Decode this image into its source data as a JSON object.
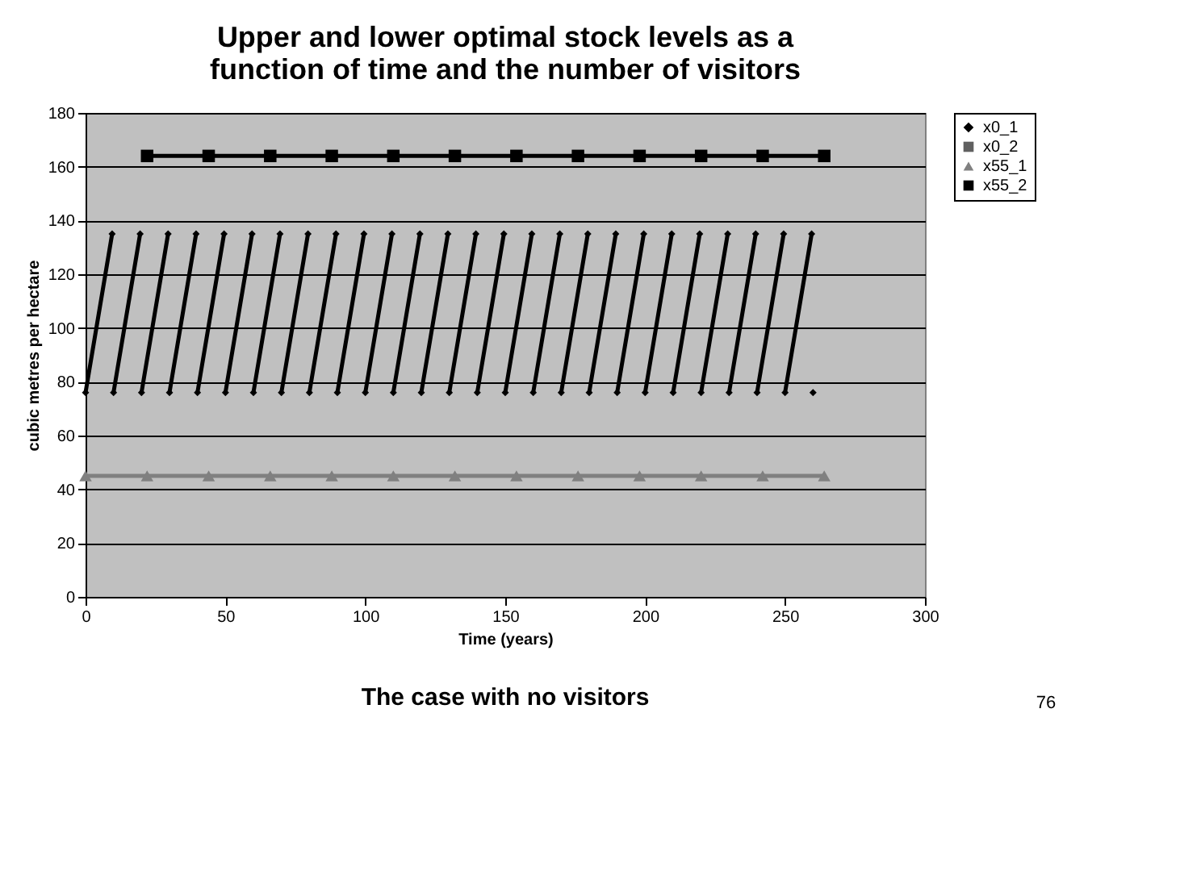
{
  "chart_data": {
    "type": "line",
    "title": [
      "Upper and lower optimal stock levels as a",
      "function of time and the number of visitors"
    ],
    "xlabel": "Time (years)",
    "ylabel": "cubic metres per hectare",
    "xlim": [
      0,
      300
    ],
    "xticks": [
      0,
      50,
      100,
      150,
      200,
      250,
      300
    ],
    "ylim": [
      0,
      180
    ],
    "yticks": [
      0,
      20,
      40,
      60,
      80,
      100,
      120,
      140,
      160,
      180
    ],
    "grid": "y",
    "legend": "right",
    "line_style": "solid",
    "annotations": [
      "The case with no visitors",
      "76"
    ],
    "series": [
      {
        "name": "x0_1",
        "marker": "diamond",
        "color": "#000000",
        "x": [
          0,
          9.5,
          9.8,
          10,
          19.5,
          19.8,
          20,
          29.5,
          29.8,
          30,
          39.5,
          39.8,
          40,
          49.5,
          49.8,
          50,
          59.5,
          59.8,
          60,
          69.5,
          69.8,
          70,
          79.5,
          79.8,
          80,
          89.5,
          89.8,
          90,
          99.5,
          99.8,
          100,
          109.5,
          109.8,
          110,
          119.5,
          119.8,
          120,
          129.5,
          129.8,
          130,
          139.5,
          139.8,
          140,
          149.5,
          149.8,
          150,
          159.5,
          159.8,
          160,
          169.5,
          169.8,
          170,
          179.5,
          179.8,
          180,
          189.5,
          189.8,
          190,
          199.5,
          199.8,
          200,
          209.5,
          209.8,
          210,
          219.5,
          219.8,
          220,
          229.5,
          229.8,
          230,
          239.5,
          239.8,
          240,
          249.5,
          249.8,
          250,
          259.5,
          259.8,
          260
        ],
        "values": [
          76,
          135,
          null,
          76,
          135,
          null,
          76,
          135,
          null,
          76,
          135,
          null,
          76,
          135,
          null,
          76,
          135,
          null,
          76,
          135,
          null,
          76,
          135,
          null,
          76,
          135,
          null,
          76,
          135,
          null,
          76,
          135,
          null,
          76,
          135,
          null,
          76,
          135,
          null,
          76,
          135,
          null,
          76,
          135,
          null,
          76,
          135,
          null,
          76,
          135,
          null,
          76,
          135,
          null,
          76,
          135,
          null,
          76,
          135,
          null,
          76,
          135,
          null,
          76,
          135,
          null,
          76,
          135,
          null,
          76,
          135,
          null,
          76,
          135,
          null,
          76,
          135,
          null,
          76
        ]
      },
      {
        "name": "x0_2",
        "marker": "square",
        "color": "#606060"
      },
      {
        "name": "x55_1",
        "marker": "triangle",
        "color": "#808080",
        "x": [
          0,
          22,
          44,
          66,
          88,
          110,
          132,
          154,
          176,
          198,
          220,
          242,
          264
        ],
        "values": [
          45,
          45,
          45,
          45,
          45,
          45,
          45,
          45,
          45,
          45,
          45,
          45,
          45
        ]
      },
      {
        "name": "x55_2",
        "marker": "square",
        "color": "#000000",
        "x": [
          22,
          44,
          66,
          88,
          110,
          132,
          154,
          176,
          198,
          220,
          242,
          264
        ],
        "values": [
          164,
          164,
          164,
          164,
          164,
          164,
          164,
          164,
          164,
          164,
          164,
          164
        ]
      }
    ]
  }
}
